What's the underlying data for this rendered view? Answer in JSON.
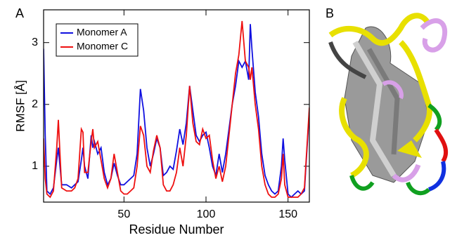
{
  "chart_data": {
    "type": "line",
    "panel_label": "A",
    "xlabel": "Residue Number",
    "ylabel": "RMSF [Å]",
    "x": [
      1,
      2,
      3,
      5,
      7,
      9,
      10,
      11,
      12,
      15,
      18,
      20,
      22,
      24,
      25,
      26,
      28,
      30,
      31,
      32,
      34,
      36,
      38,
      40,
      42,
      44,
      46,
      48,
      50,
      52,
      54,
      56,
      58,
      60,
      62,
      64,
      66,
      68,
      70,
      72,
      74,
      76,
      78,
      80,
      82,
      84,
      86,
      88,
      90,
      92,
      94,
      96,
      98,
      100,
      102,
      104,
      106,
      108,
      110,
      112,
      114,
      116,
      118,
      120,
      122,
      124,
      126,
      127,
      128,
      130,
      132,
      134,
      136,
      138,
      140,
      142,
      144,
      146,
      147,
      148,
      150,
      152,
      154,
      156,
      158,
      160,
      163
    ],
    "series": [
      {
        "name": "Monomer A",
        "color": "#1010e0",
        "values": [
          2.9,
          1.5,
          0.6,
          0.55,
          0.65,
          1.1,
          1.3,
          1.0,
          0.7,
          0.7,
          0.65,
          0.7,
          0.75,
          1.1,
          1.3,
          1.0,
          0.8,
          1.5,
          1.3,
          1.4,
          1.2,
          1.3,
          0.9,
          0.7,
          0.8,
          1.05,
          0.85,
          0.7,
          0.7,
          0.75,
          0.8,
          0.85,
          1.2,
          2.25,
          1.9,
          1.3,
          1.0,
          1.2,
          1.45,
          1.3,
          0.85,
          0.9,
          1.0,
          0.95,
          1.25,
          1.6,
          1.35,
          1.7,
          2.3,
          1.9,
          1.5,
          1.4,
          1.5,
          1.55,
          1.3,
          1.0,
          0.85,
          1.2,
          0.9,
          1.2,
          1.6,
          2.0,
          2.3,
          2.7,
          2.6,
          2.7,
          2.4,
          3.3,
          2.9,
          2.2,
          1.8,
          1.2,
          0.85,
          0.7,
          0.6,
          0.55,
          0.6,
          1.0,
          1.45,
          1.1,
          0.55,
          0.5,
          0.55,
          0.6,
          0.55,
          0.6,
          1.9
        ]
      },
      {
        "name": "Monomer C",
        "color": "#ee1010",
        "values": [
          1.45,
          0.8,
          0.55,
          0.5,
          0.6,
          1.3,
          1.75,
          1.2,
          0.65,
          0.6,
          0.6,
          0.65,
          0.8,
          1.6,
          1.55,
          0.9,
          0.9,
          1.4,
          1.6,
          1.3,
          1.4,
          1.1,
          0.8,
          0.65,
          0.8,
          1.2,
          0.9,
          0.6,
          0.55,
          0.55,
          0.6,
          0.65,
          1.0,
          1.65,
          1.5,
          1.0,
          0.9,
          1.25,
          1.5,
          1.3,
          0.7,
          0.6,
          0.6,
          0.7,
          0.9,
          1.3,
          1.0,
          1.5,
          2.3,
          1.7,
          1.4,
          1.35,
          1.6,
          1.45,
          1.5,
          1.1,
          0.8,
          1.0,
          0.75,
          1.0,
          1.5,
          2.0,
          2.5,
          2.8,
          3.35,
          2.7,
          2.6,
          2.4,
          2.6,
          2.0,
          1.6,
          1.0,
          0.7,
          0.55,
          0.5,
          0.5,
          0.55,
          0.8,
          1.2,
          0.7,
          0.5,
          0.5,
          0.5,
          0.5,
          0.55,
          0.65,
          1.95
        ]
      }
    ],
    "xlim": [
      1,
      163
    ],
    "ylim": [
      0.42,
      3.53
    ],
    "xticks": [
      50,
      100,
      150
    ],
    "yticks": [
      1,
      2,
      3
    ],
    "legend": "upper left"
  },
  "image_panel": {
    "label": "B"
  }
}
